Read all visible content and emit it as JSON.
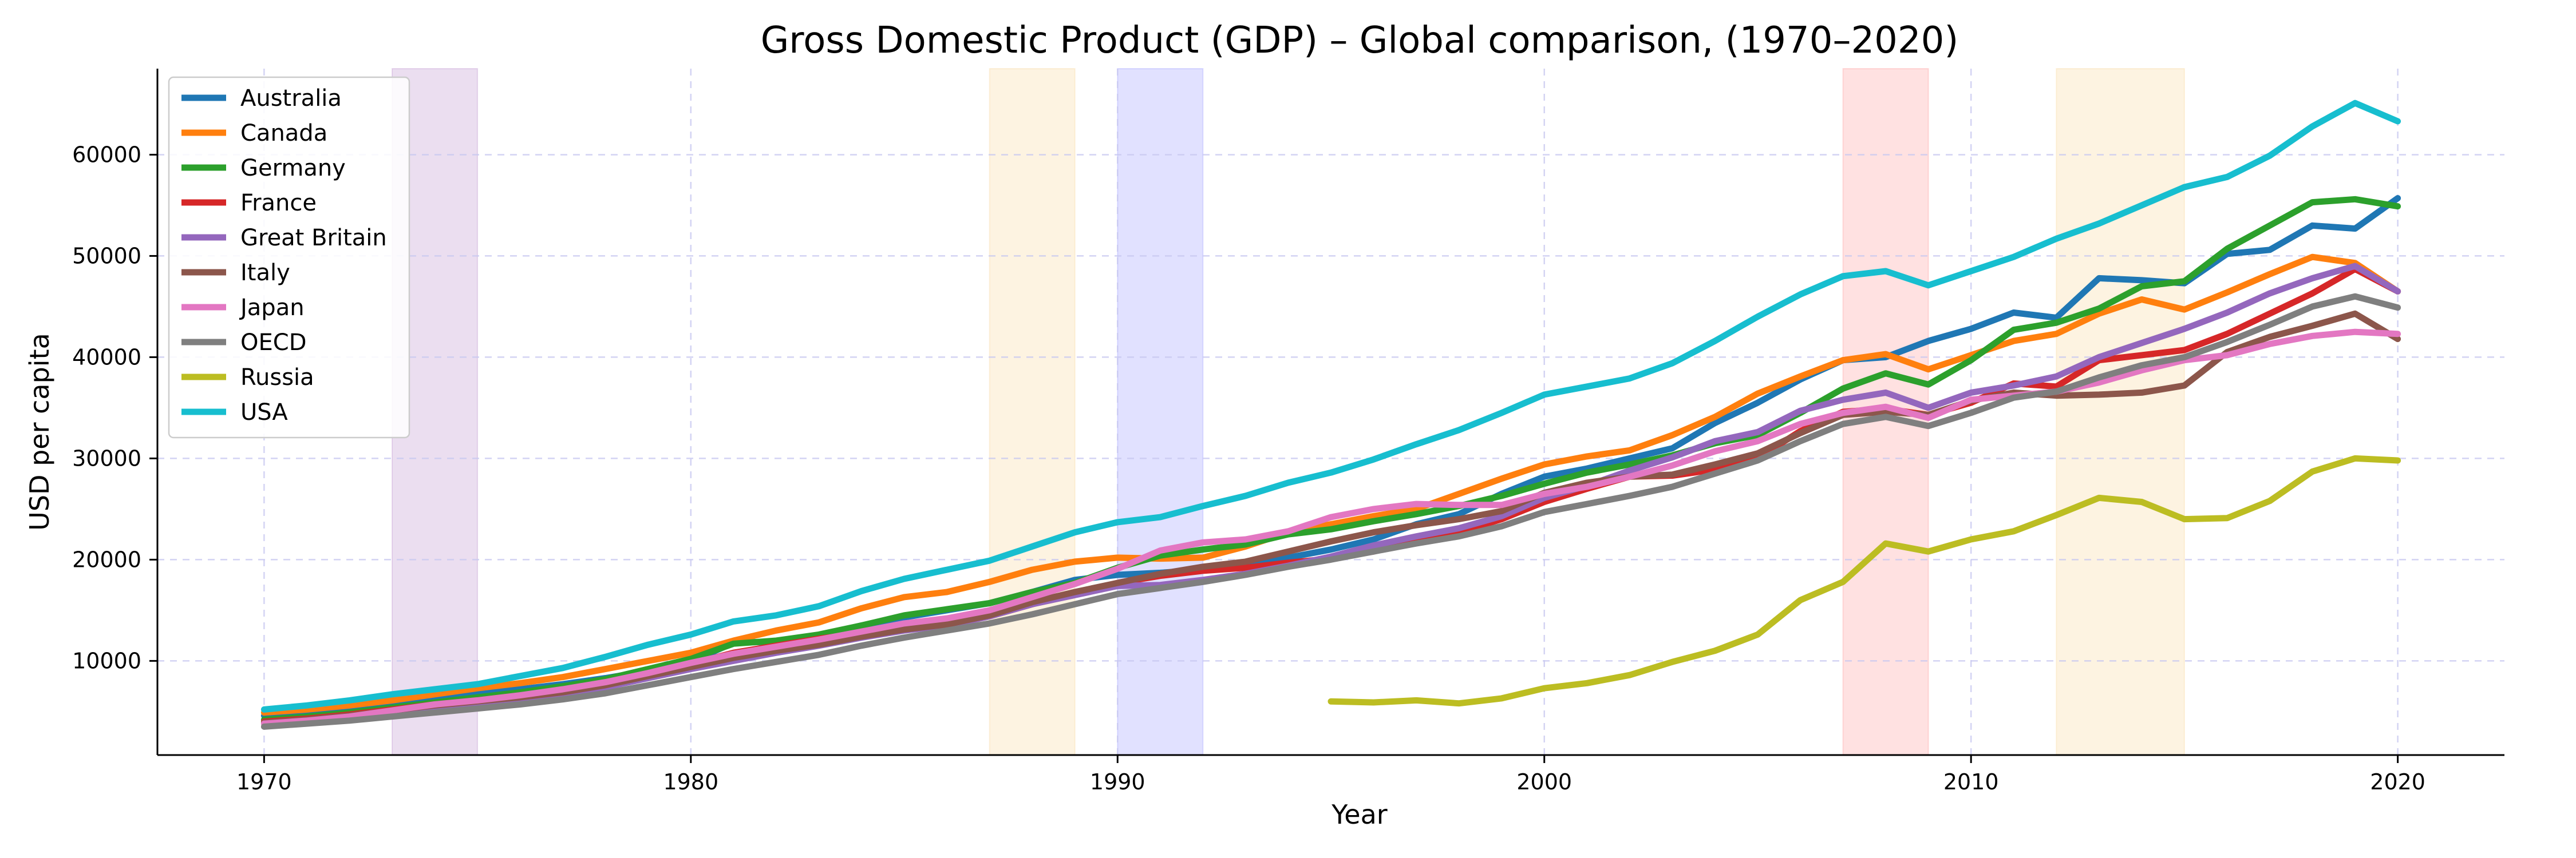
{
  "chart_data": {
    "type": "line",
    "title": "Gross Domestic Product (GDP) – Global comparison, (1970–2020)",
    "xlabel": "Year",
    "ylabel": "USD per capita",
    "xlim": [
      1967.5,
      2022.5
    ],
    "ylim": [
      700,
      68500
    ],
    "xticks": [
      1970,
      1980,
      1990,
      2000,
      2010,
      2020
    ],
    "yticks": [
      10000,
      20000,
      30000,
      40000,
      50000,
      60000
    ],
    "grid": true,
    "legend_position": "upper-left",
    "shaded_periods": [
      {
        "start": 1973,
        "end": 1975,
        "color": "#9b59b6",
        "opacity": 0.2
      },
      {
        "start": 1987,
        "end": 1989,
        "color": "#f5c26b",
        "opacity": 0.2
      },
      {
        "start": 1990,
        "end": 1992,
        "color": "#6a6aff",
        "opacity": 0.2
      },
      {
        "start": 2007,
        "end": 2009,
        "color": "#ff6b6b",
        "opacity": 0.2
      },
      {
        "start": 2012,
        "end": 2015,
        "color": "#f5c26b",
        "opacity": 0.2
      }
    ],
    "series": [
      {
        "name": "Australia",
        "color": "#1f77b4",
        "x_start": 1970,
        "values": [
          4600,
          4900,
          5200,
          5700,
          6200,
          6700,
          7200,
          7700,
          8300,
          9000,
          9900,
          11800,
          11900,
          12500,
          13500,
          14300,
          15000,
          15700,
          16800,
          18000,
          18500,
          18700,
          19000,
          19500,
          20200,
          21000,
          22000,
          23500,
          24500,
          26500,
          28200,
          29000,
          30000,
          31000,
          33500,
          35500,
          37800,
          39700,
          40000,
          41600,
          42800,
          44400,
          43900,
          47800,
          47600,
          47300,
          50200,
          50600,
          53000,
          52700,
          55700
        ]
      },
      {
        "name": "Canada",
        "color": "#ff7f0e",
        "x_start": 1970,
        "values": [
          4900,
          5200,
          5600,
          6100,
          6700,
          7300,
          7800,
          8400,
          9200,
          10000,
          10800,
          12000,
          13000,
          13800,
          15200,
          16300,
          16800,
          17800,
          19000,
          19800,
          20200,
          20100,
          20200,
          21300,
          22700,
          23500,
          24300,
          25000,
          26500,
          28000,
          29400,
          30200,
          30800,
          32300,
          34100,
          36400,
          38100,
          39700,
          40300,
          38800,
          40200,
          41600,
          42300,
          44300,
          45700,
          44700,
          46400,
          48200,
          49900,
          49300,
          46500
        ]
      },
      {
        "name": "Germany",
        "color": "#2ca02c",
        "x_start": 1970,
        "values": [
          4200,
          4500,
          4900,
          5400,
          5900,
          6400,
          6900,
          7500,
          8200,
          9200,
          10200,
          11700,
          12000,
          12600,
          13500,
          14500,
          15100,
          15700,
          16800,
          17700,
          19200,
          20400,
          21000,
          21500,
          22500,
          23000,
          23800,
          24500,
          25300,
          26300,
          27500,
          28600,
          29400,
          30300,
          31500,
          32300,
          34500,
          36900,
          38400,
          37300,
          39700,
          42700,
          43400,
          44800,
          47000,
          47500,
          50700,
          53000,
          55300,
          55600,
          54900
        ]
      },
      {
        "name": "France",
        "color": "#d62728",
        "x_start": 1970,
        "values": [
          4000,
          4300,
          4700,
          5200,
          5700,
          6100,
          6600,
          7100,
          7800,
          8700,
          9700,
          10800,
          11500,
          12200,
          12700,
          13100,
          13500,
          14400,
          15600,
          16700,
          17700,
          18400,
          18900,
          19200,
          19700,
          20100,
          20800,
          21800,
          22700,
          24000,
          25700,
          27000,
          28200,
          28300,
          28900,
          30000,
          32700,
          34600,
          34900,
          34300,
          35500,
          37400,
          37100,
          39700,
          40200,
          40700,
          42300,
          44300,
          46300,
          48700,
          46500
        ]
      },
      {
        "name": "Great Britain",
        "color": "#9467bd",
        "x_start": 1970,
        "values": [
          3800,
          4100,
          4500,
          5000,
          5400,
          5800,
          6200,
          6700,
          7400,
          8300,
          9200,
          10000,
          10800,
          11500,
          12300,
          13000,
          13500,
          14400,
          15600,
          16500,
          17400,
          17500,
          18000,
          18600,
          19400,
          20300,
          21400,
          22300,
          23100,
          24300,
          26100,
          27300,
          28800,
          30100,
          31700,
          32600,
          34700,
          35800,
          36500,
          35000,
          36500,
          37200,
          38100,
          40000,
          41400,
          42800,
          44400,
          46300,
          47800,
          49000,
          46500
        ]
      },
      {
        "name": "Italy",
        "color": "#8c564b",
        "x_start": 1970,
        "values": [
          3900,
          4200,
          4600,
          5100,
          5600,
          6000,
          6400,
          6900,
          7600,
          8500,
          9400,
          10300,
          11000,
          11600,
          12400,
          13100,
          13600,
          14500,
          15800,
          16800,
          17700,
          18600,
          19300,
          19800,
          20800,
          21800,
          22700,
          23400,
          24000,
          24800,
          26600,
          27600,
          28200,
          28400,
          29400,
          30500,
          32500,
          34300,
          34600,
          34300,
          35700,
          36500,
          36200,
          36300,
          36500,
          37200,
          40500,
          42000,
          43100,
          44300,
          41800
        ]
      },
      {
        "name": "Japan",
        "color": "#e377c2",
        "x_start": 1970,
        "values": [
          3800,
          4100,
          4500,
          5100,
          5700,
          6100,
          6600,
          7200,
          7900,
          8800,
          9800,
          10700,
          11400,
          12100,
          12900,
          13700,
          14200,
          15000,
          16300,
          17600,
          19100,
          20900,
          21700,
          22000,
          22800,
          24200,
          25000,
          25500,
          25400,
          25400,
          26500,
          27200,
          28200,
          29300,
          30700,
          31700,
          33400,
          34500,
          35100,
          34000,
          35800,
          36200,
          36600,
          37500,
          38700,
          39700,
          40200,
          41300,
          42100,
          42500,
          42300
        ]
      },
      {
        "name": "OECD",
        "color": "#7f7f7f",
        "x_start": 1970,
        "values": [
          3500,
          3800,
          4100,
          4500,
          4900,
          5300,
          5700,
          6200,
          6800,
          7600,
          8400,
          9200,
          9900,
          10600,
          11500,
          12300,
          13000,
          13700,
          14600,
          15600,
          16600,
          17200,
          17800,
          18500,
          19300,
          20000,
          20800,
          21600,
          22300,
          23300,
          24700,
          25500,
          26300,
          27200,
          28500,
          29800,
          31700,
          33400,
          34100,
          33200,
          34500,
          36000,
          36600,
          38000,
          39200,
          40000,
          41500,
          43200,
          45000,
          46000,
          44900
        ]
      },
      {
        "name": "Russia",
        "color": "#bcbd22",
        "x_start": 1995,
        "values": [
          6000,
          5900,
          6100,
          5800,
          6300,
          7300,
          7800,
          8600,
          9900,
          11000,
          12600,
          16000,
          17800,
          21600,
          20800,
          22000,
          22800,
          24400,
          26100,
          25700,
          24000,
          24100,
          25800,
          28700,
          30000,
          29800
        ]
      },
      {
        "name": "USA",
        "color": "#17becf",
        "x_start": 1970,
        "values": [
          5200,
          5600,
          6100,
          6700,
          7200,
          7700,
          8500,
          9300,
          10400,
          11600,
          12600,
          13900,
          14500,
          15400,
          16900,
          18100,
          19000,
          19900,
          21300,
          22700,
          23700,
          24200,
          25300,
          26300,
          27600,
          28600,
          29900,
          31400,
          32800,
          34500,
          36300,
          37100,
          37900,
          39400,
          41600,
          44000,
          46200,
          48000,
          48500,
          47100,
          48500,
          49900,
          51700,
          53200,
          55000,
          56800,
          57800,
          59900,
          62800,
          65100,
          63300
        ]
      }
    ]
  }
}
